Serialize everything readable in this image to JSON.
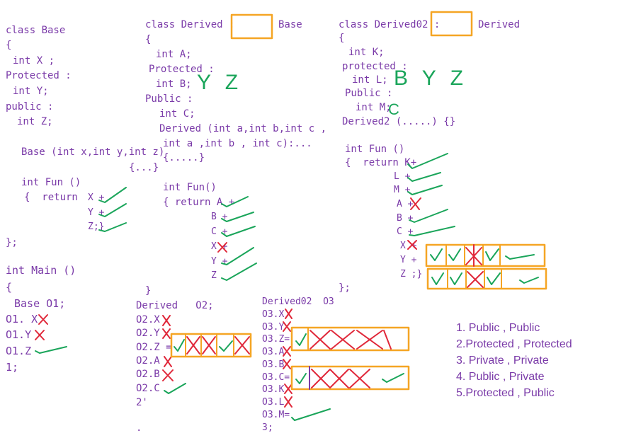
{
  "colors": {
    "text": "#7a3aa8",
    "check": "#1aa55a",
    "cross": "#e0283a",
    "box": "#f5a524"
  },
  "base_block": {
    "l1": "class Base",
    "l2": "{",
    "l3": "int X ;",
    "l4": "Protected :",
    "l5": "int Y;",
    "l6": "public :",
    "l7": "int Z;",
    "l8": "Base (int x,int y,int z)",
    "l9": "{...}",
    "l10": "int Fun ()",
    "l11": "{  return",
    "r1": "X +",
    "r2": "Y +",
    "r3": "Z;}",
    "l12": "};"
  },
  "derived_block": {
    "l1": "class Derived :",
    "l1b": "Base",
    "l2": "{",
    "l3": "int A;",
    "l4": "Protected :",
    "l5": "int B;",
    "l6": "Public :",
    "l7": "int C;",
    "l8": "Derived (int a,int b,int c ,",
    "l9": "int a ,int b , int c):...",
    "l10": "{.....}",
    "l11": "int Fun()",
    "l12": "{ return A +",
    "r1": "B +",
    "r2": "C +",
    "r3": "X +",
    "r4": "Y +",
    "r5": "Z",
    "l13": "}"
  },
  "derived02_block": {
    "l1": "class Derived02 :",
    "l1b": "Derived",
    "l2": "{",
    "l3": "int K;",
    "l4": "protected :",
    "l5": "int L;",
    "l6": "Public :",
    "l7": "int M;",
    "l8": "Derived2 (.....) {}",
    "l9": "int Fun ()",
    "l10": "{  return K+",
    "r1": "L +",
    "r2": "M +",
    "r3": "A +",
    "r4": "B +",
    "r5": "C +",
    "r6": "X +",
    "r7": "Y +",
    "r8": "Z ;}",
    "l11": "};"
  },
  "handwriting": {
    "b_letters": "Y Z",
    "l_letters": "B Y Z",
    "m_letter": "C"
  },
  "main_block": {
    "l1": "int Main ()",
    "l2": "{",
    "l3": "Base O1;",
    "l4": "O1. X",
    "l5": "O1.Y",
    "l6": "O1.Z",
    "l7": "1;"
  },
  "o2_block": {
    "l1": "Derived   O2;",
    "l2": "O2.X",
    "l3": "O2.Y",
    "l4": "O2.Z =",
    "l5": "O2.A",
    "l6": "O2.B",
    "l7": "O2.C",
    "l8": "2'",
    "l9": "."
  },
  "o3_block": {
    "l1": "Derived02  O3",
    "l2": "O3.X",
    "l3": "O3.Y",
    "l4": "O3.Z=",
    "l5": "O3.A",
    "l6": "O3.B",
    "l7": "O3.C=",
    "l8": "O3.K",
    "l9": "O3.L",
    "l10": "O3.M=",
    "l11": "3;"
  },
  "answers": [
    "1. Public , Public",
    "2.Protected , Protected",
    "3. Private , Private",
    "4. Public , Private",
    "5.Protected , Public"
  ]
}
